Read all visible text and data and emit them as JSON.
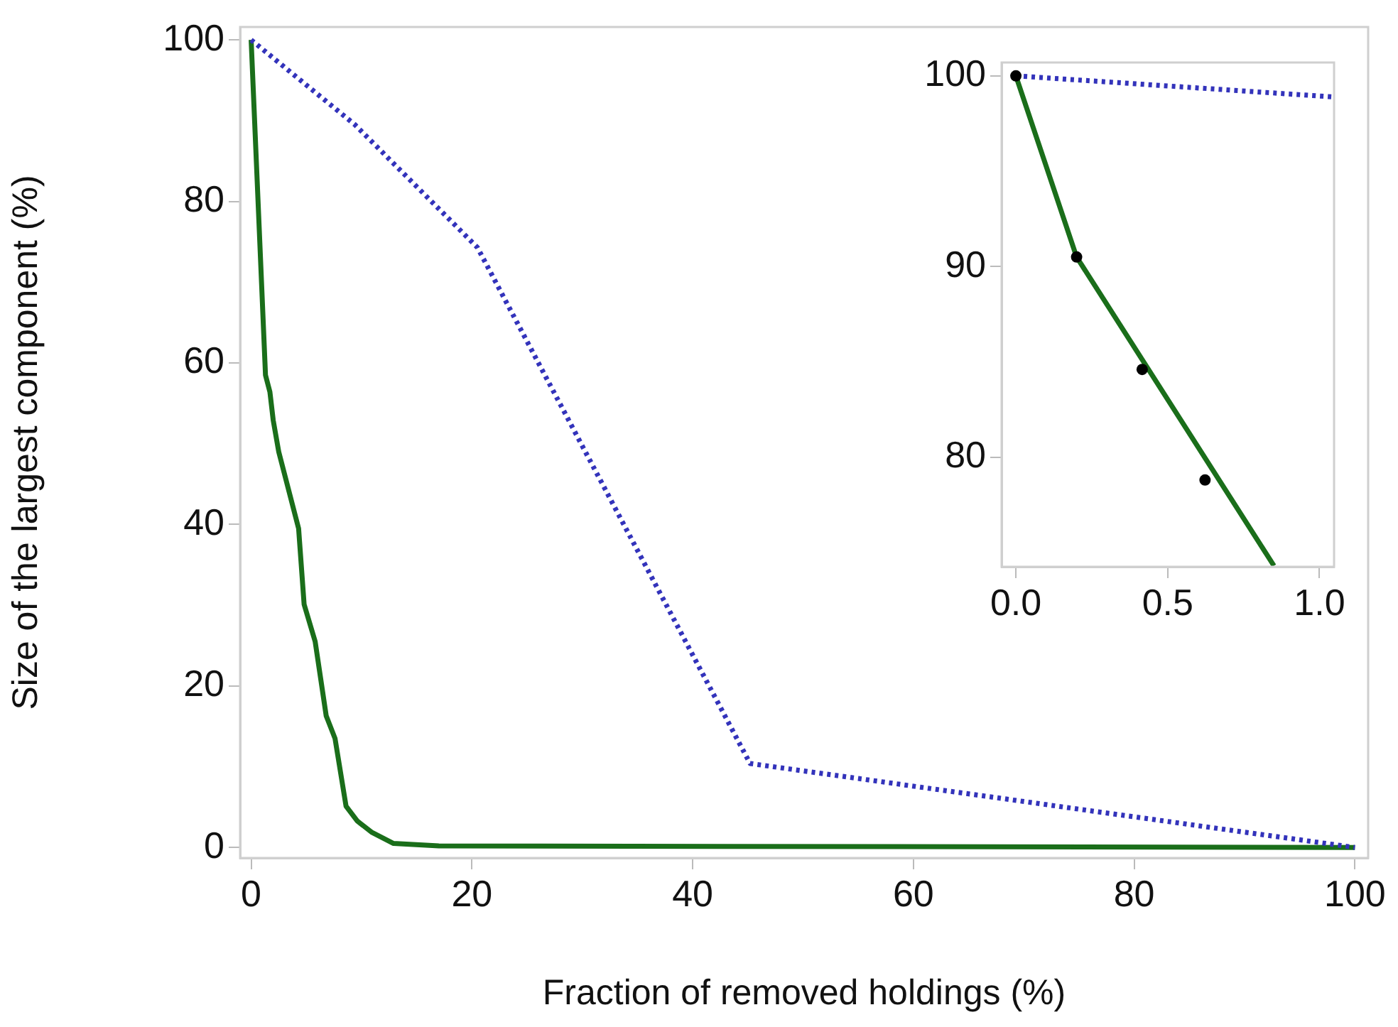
{
  "chart_data": [
    {
      "type": "line",
      "xlabel": "Fraction of removed holdings (%)",
      "ylabel": "Size of the largest component (%)",
      "xlim": [
        -1,
        101.2
      ],
      "ylim": [
        -1.3,
        101.6
      ],
      "xticks": [
        0,
        20,
        40,
        60,
        80,
        100
      ],
      "yticks": [
        0,
        20,
        40,
        60,
        80,
        100
      ],
      "grid": false,
      "legend": false,
      "marker": "none",
      "series": [
        {
          "color": "#3333bb",
          "line_style": "dotted",
          "x": [
            0,
            9.4,
            20.5,
            45.2,
            100
          ],
          "values": [
            100,
            89.5,
            74.3,
            10.4,
            0
          ]
        },
        {
          "color": "#1a6e1a",
          "line_style": "solid",
          "x": [
            0,
            1.3,
            1.7,
            2.0,
            2.5,
            4.3,
            4.8,
            5.8,
            6.8,
            7.6,
            8.6,
            9.6,
            10.9,
            12.9,
            17.0,
            100
          ],
          "values": [
            100,
            58.5,
            56.4,
            52.9,
            49.0,
            39.5,
            30.1,
            25.5,
            16.3,
            13.5,
            5.1,
            3.3,
            1.9,
            0.5,
            0.2,
            0
          ]
        }
      ]
    },
    {
      "type": "line",
      "xlim": [
        -0.047,
        1.048
      ],
      "ylim": [
        74.25,
        100.7
      ],
      "xticks": [
        {
          "value": 0,
          "label": "0.0"
        },
        {
          "value": 0.5,
          "label": "0.5"
        },
        {
          "value": 1,
          "label": "1.0"
        }
      ],
      "yticks": [
        80,
        90,
        100
      ],
      "grid": false,
      "legend": false,
      "series": [
        {
          "color": "#3333bb",
          "line_style": "dotted",
          "marker": "none",
          "x": [
            0,
            1.04
          ],
          "values": [
            100,
            98.9
          ]
        },
        {
          "color": "#1a6e1a",
          "line_style": "solid",
          "marker": "none",
          "x": [
            0,
            0.2,
            0.85
          ],
          "values": [
            100,
            90.5,
            74.3
          ]
        },
        {
          "type": "scatter",
          "color": "#000000",
          "marker": "circle",
          "x": [
            0,
            0.2,
            0.416,
            0.623
          ],
          "values": [
            100,
            90.5,
            84.6,
            78.8
          ]
        }
      ]
    }
  ]
}
